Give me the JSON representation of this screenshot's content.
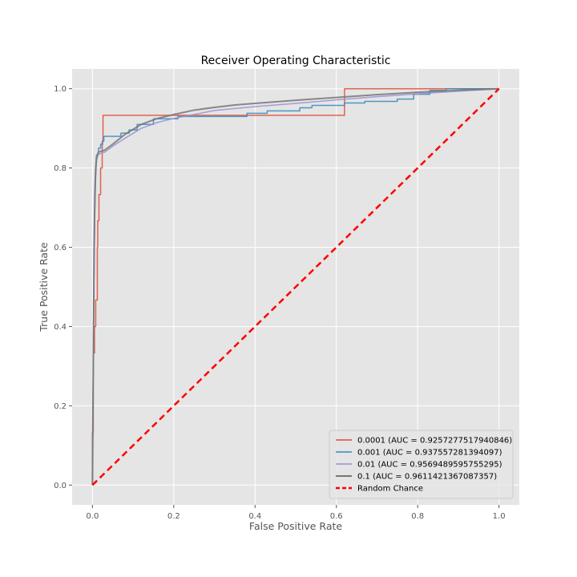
{
  "chart_data": {
    "type": "line",
    "title": "Receiver Operating Characteristic",
    "xlabel": "False Positive Rate",
    "ylabel": "True Positive Rate",
    "xlim": [
      -0.05,
      1.05
    ],
    "ylim": [
      -0.05,
      1.05
    ],
    "xticks": [
      "0.0",
      "0.2",
      "0.4",
      "0.6",
      "0.8",
      "1.0"
    ],
    "yticks": [
      "0.0",
      "0.2",
      "0.4",
      "0.6",
      "0.8",
      "1.0"
    ],
    "grid": true,
    "legend_position": "lower-right",
    "series": [
      {
        "name": "0.0001 (AUC = 0.9257277517940846)",
        "color": "#e24a33",
        "width": 1.5,
        "dash": "",
        "points": [
          [
            0,
            0
          ],
          [
            0,
            0.133
          ],
          [
            0.002,
            0.133
          ],
          [
            0.002,
            0.333
          ],
          [
            0.005,
            0.333
          ],
          [
            0.005,
            0.4
          ],
          [
            0.008,
            0.4
          ],
          [
            0.008,
            0.467
          ],
          [
            0.012,
            0.467
          ],
          [
            0.012,
            0.6
          ],
          [
            0.013,
            0.6
          ],
          [
            0.013,
            0.667
          ],
          [
            0.016,
            0.667
          ],
          [
            0.016,
            0.733
          ],
          [
            0.02,
            0.733
          ],
          [
            0.02,
            0.8
          ],
          [
            0.024,
            0.8
          ],
          [
            0.024,
            0.867
          ],
          [
            0.026,
            0.867
          ],
          [
            0.026,
            0.933
          ],
          [
            0.62,
            0.933
          ],
          [
            0.62,
            1.0
          ],
          [
            1.0,
            1.0
          ]
        ]
      },
      {
        "name": "0.001 (AUC = 0.937557281394097)",
        "color": "#348abd",
        "width": 1.5,
        "dash": "",
        "points": [
          [
            0,
            0
          ],
          [
            0.002,
            0.3
          ],
          [
            0.004,
            0.55
          ],
          [
            0.006,
            0.7
          ],
          [
            0.008,
            0.78
          ],
          [
            0.01,
            0.82
          ],
          [
            0.015,
            0.84
          ],
          [
            0.015,
            0.85
          ],
          [
            0.02,
            0.85
          ],
          [
            0.02,
            0.86
          ],
          [
            0.025,
            0.86
          ],
          [
            0.025,
            0.868
          ],
          [
            0.028,
            0.868
          ],
          [
            0.028,
            0.88
          ],
          [
            0.07,
            0.88
          ],
          [
            0.07,
            0.888
          ],
          [
            0.09,
            0.888
          ],
          [
            0.09,
            0.896
          ],
          [
            0.11,
            0.896
          ],
          [
            0.11,
            0.91
          ],
          [
            0.15,
            0.91
          ],
          [
            0.15,
            0.924
          ],
          [
            0.21,
            0.924
          ],
          [
            0.21,
            0.93
          ],
          [
            0.38,
            0.93
          ],
          [
            0.38,
            0.938
          ],
          [
            0.43,
            0.938
          ],
          [
            0.43,
            0.944
          ],
          [
            0.51,
            0.944
          ],
          [
            0.51,
            0.952
          ],
          [
            0.54,
            0.952
          ],
          [
            0.54,
            0.958
          ],
          [
            0.62,
            0.958
          ],
          [
            0.62,
            0.964
          ],
          [
            0.67,
            0.964
          ],
          [
            0.67,
            0.968
          ],
          [
            0.75,
            0.968
          ],
          [
            0.75,
            0.974
          ],
          [
            0.79,
            0.974
          ],
          [
            0.79,
            0.986
          ],
          [
            0.83,
            0.986
          ],
          [
            0.83,
            0.996
          ],
          [
            0.87,
            0.996
          ],
          [
            0.87,
            1.0
          ],
          [
            1.0,
            1.0
          ]
        ]
      },
      {
        "name": "0.01 (AUC = 0.9569489595755295)",
        "color": "#988ed5",
        "width": 1.5,
        "dash": "",
        "points": [
          [
            0,
            0
          ],
          [
            0.002,
            0.3
          ],
          [
            0.004,
            0.55
          ],
          [
            0.006,
            0.72
          ],
          [
            0.008,
            0.8
          ],
          [
            0.01,
            0.82
          ],
          [
            0.015,
            0.835
          ],
          [
            0.03,
            0.84
          ],
          [
            0.05,
            0.855
          ],
          [
            0.08,
            0.875
          ],
          [
            0.12,
            0.9
          ],
          [
            0.16,
            0.915
          ],
          [
            0.2,
            0.925
          ],
          [
            0.25,
            0.935
          ],
          [
            0.3,
            0.945
          ],
          [
            0.4,
            0.955
          ],
          [
            0.5,
            0.963
          ],
          [
            0.6,
            0.972
          ],
          [
            0.7,
            0.98
          ],
          [
            0.8,
            0.987
          ],
          [
            0.9,
            0.994
          ],
          [
            1.0,
            1.0
          ]
        ]
      },
      {
        "name": "0.1 (AUC = 0.9611421367087357)",
        "color": "#777777",
        "width": 2,
        "dash": "",
        "points": [
          [
            0,
            0
          ],
          [
            0.002,
            0.3
          ],
          [
            0.004,
            0.6
          ],
          [
            0.006,
            0.74
          ],
          [
            0.008,
            0.8
          ],
          [
            0.01,
            0.83
          ],
          [
            0.015,
            0.84
          ],
          [
            0.03,
            0.845
          ],
          [
            0.05,
            0.86
          ],
          [
            0.08,
            0.885
          ],
          [
            0.12,
            0.91
          ],
          [
            0.16,
            0.925
          ],
          [
            0.2,
            0.935
          ],
          [
            0.25,
            0.946
          ],
          [
            0.3,
            0.953
          ],
          [
            0.35,
            0.959
          ],
          [
            0.4,
            0.963
          ],
          [
            0.5,
            0.971
          ],
          [
            0.6,
            0.978
          ],
          [
            0.7,
            0.985
          ],
          [
            0.8,
            0.991
          ],
          [
            0.9,
            0.996
          ],
          [
            1.0,
            1.0
          ]
        ]
      },
      {
        "name": "Random Chance",
        "color": "#ff0000",
        "width": 2.5,
        "dash": "8,5",
        "points": [
          [
            0,
            0
          ],
          [
            1,
            1
          ]
        ]
      }
    ]
  }
}
